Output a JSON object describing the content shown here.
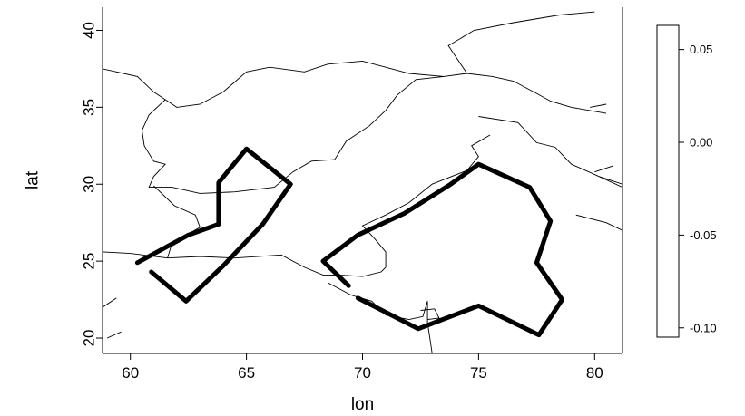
{
  "chart_data": {
    "type": "map-contour",
    "xlabel": "lon",
    "ylabel": "lat",
    "xlim": [
      58.8,
      81.2
    ],
    "ylim": [
      19.0,
      41.5
    ],
    "xticks": [
      60,
      65,
      70,
      75,
      80
    ],
    "yticks": [
      20,
      25,
      30,
      35,
      40
    ],
    "xtick_labels": [
      "60",
      "65",
      "70",
      "75",
      "80"
    ],
    "ytick_labels": [
      "20",
      "25",
      "30",
      "35",
      "40"
    ],
    "grid": false,
    "contours": [
      {
        "name": "",
        "color": "#000000",
        "points": [
          [
            60.3,
            24.9
          ],
          [
            62.5,
            26.7
          ],
          [
            63.8,
            27.4
          ],
          [
            63.8,
            30.1
          ],
          [
            65.0,
            32.3
          ],
          [
            66.9,
            30.0
          ],
          [
            65.7,
            27.4
          ],
          [
            64.0,
            24.7
          ],
          [
            62.4,
            22.4
          ],
          [
            60.9,
            24.3
          ]
        ]
      },
      {
        "name": "",
        "color": "#000000",
        "points": [
          [
            69.4,
            23.4
          ],
          [
            68.3,
            25.0
          ],
          [
            69.8,
            26.7
          ],
          [
            71.8,
            28.1
          ],
          [
            73.8,
            30.0
          ],
          [
            75.0,
            31.3
          ],
          [
            77.2,
            29.8
          ],
          [
            78.1,
            27.6
          ],
          [
            77.5,
            24.9
          ],
          [
            78.6,
            22.5
          ],
          [
            77.6,
            20.2
          ],
          [
            75.0,
            22.1
          ],
          [
            72.4,
            20.6
          ],
          [
            69.8,
            22.6
          ]
        ]
      }
    ],
    "borders": [
      [
        [
          58.8,
          37.5
        ],
        [
          60.3,
          37.0
        ],
        [
          61.0,
          36.0
        ],
        [
          61.5,
          35.5
        ],
        [
          62.0,
          35.0
        ],
        [
          63.0,
          35.2
        ],
        [
          64.0,
          36.0
        ],
        [
          65.0,
          37.3
        ],
        [
          66.0,
          37.6
        ],
        [
          67.5,
          37.3
        ],
        [
          68.5,
          37.8
        ],
        [
          70.0,
          38.0
        ],
        [
          71.0,
          37.6
        ],
        [
          72.0,
          37.2
        ],
        [
          73.5,
          37.0
        ],
        [
          74.5,
          37.2
        ],
        [
          75.6,
          37.0
        ],
        [
          76.5,
          36.7
        ],
        [
          77.5,
          35.9
        ],
        [
          78.1,
          35.4
        ],
        [
          79.0,
          35.0
        ],
        [
          80.5,
          34.6
        ]
      ],
      [
        [
          74.5,
          37.2
        ],
        [
          73.7,
          39.0
        ],
        [
          74.8,
          40.0
        ],
        [
          76.5,
          40.5
        ],
        [
          78.5,
          41.0
        ],
        [
          80.0,
          41.2
        ]
      ],
      [
        [
          61.5,
          35.5
        ],
        [
          60.8,
          34.5
        ],
        [
          60.5,
          33.5
        ],
        [
          60.6,
          32.5
        ],
        [
          61.0,
          31.5
        ],
        [
          61.5,
          31.3
        ],
        [
          61.0,
          30.5
        ],
        [
          60.8,
          29.8
        ],
        [
          61.8,
          29.8
        ],
        [
          63.0,
          29.4
        ],
        [
          64.5,
          29.5
        ],
        [
          66.2,
          29.8
        ],
        [
          67.0,
          30.8
        ],
        [
          67.8,
          31.5
        ],
        [
          68.8,
          31.6
        ],
        [
          69.3,
          32.8
        ],
        [
          70.3,
          33.8
        ],
        [
          71.0,
          34.8
        ],
        [
          71.5,
          35.8
        ],
        [
          72.3,
          36.8
        ],
        [
          73.5,
          37.0
        ]
      ],
      [
        [
          58.8,
          25.6
        ],
        [
          60.0,
          25.5
        ],
        [
          61.6,
          25.2
        ],
        [
          63.0,
          25.3
        ],
        [
          64.5,
          25.2
        ],
        [
          66.5,
          25.4
        ],
        [
          67.5,
          24.6
        ],
        [
          68.3,
          24.1
        ],
        [
          69.0,
          24.1
        ],
        [
          70.0,
          24.0
        ],
        [
          70.8,
          24.3
        ],
        [
          71.0,
          24.6
        ],
        [
          71.0,
          25.6
        ],
        [
          70.5,
          26.5
        ],
        [
          70.0,
          27.3
        ],
        [
          71.0,
          28.0
        ],
        [
          72.0,
          28.8
        ],
        [
          73.0,
          30.0
        ],
        [
          74.5,
          30.9
        ],
        [
          75.0,
          31.8
        ],
        [
          74.7,
          32.5
        ],
        [
          75.5,
          33.2
        ]
      ],
      [
        [
          61.6,
          25.2
        ],
        [
          61.8,
          26.2
        ],
        [
          62.3,
          26.6
        ],
        [
          63.0,
          27.2
        ],
        [
          62.8,
          28.0
        ],
        [
          61.9,
          28.6
        ],
        [
          61.0,
          29.9
        ]
      ],
      [
        [
          75.0,
          34.4
        ],
        [
          76.7,
          34.0
        ],
        [
          77.5,
          32.7
        ],
        [
          78.3,
          32.4
        ],
        [
          79.0,
          31.3
        ],
        [
          80.2,
          30.5
        ],
        [
          81.2,
          29.8
        ]
      ],
      [
        [
          80.2,
          30.5
        ],
        [
          81.2,
          30.0
        ]
      ],
      [
        [
          59.4,
          22.6
        ],
        [
          58.8,
          22.0
        ]
      ],
      [
        [
          59.6,
          20.4
        ],
        [
          59.0,
          20.0
        ]
      ],
      [
        [
          68.5,
          23.6
        ],
        [
          69.5,
          22.8
        ],
        [
          70.4,
          22.4
        ],
        [
          71.0,
          21.5
        ],
        [
          72.0,
          21.2
        ],
        [
          72.6,
          21.4
        ],
        [
          72.8,
          22.4
        ],
        [
          72.8,
          21.0
        ],
        [
          72.9,
          20.0
        ],
        [
          73.0,
          19.0
        ]
      ],
      [
        [
          79.2,
          28.0
        ],
        [
          80.5,
          27.5
        ],
        [
          81.2,
          27.0
        ]
      ],
      [
        [
          72.5,
          21.8
        ],
        [
          73.1,
          21.9
        ],
        [
          73.3,
          21.3
        ],
        [
          72.8,
          21.2
        ]
      ],
      [
        [
          79.8,
          35.0
        ],
        [
          80.5,
          35.2
        ]
      ],
      [
        [
          80.0,
          30.8
        ],
        [
          80.8,
          31.2
        ]
      ]
    ],
    "colorbar": {
      "tick_values": [
        0.05,
        0.0,
        -0.05,
        -0.1
      ],
      "tick_labels": [
        "0.05",
        "0.00",
        "-0.05",
        "-0.10"
      ],
      "range": [
        -0.105,
        0.063
      ]
    }
  }
}
